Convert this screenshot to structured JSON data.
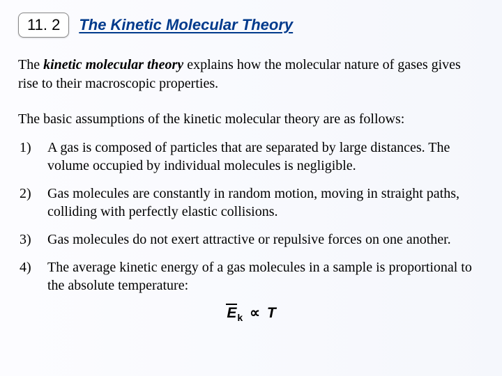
{
  "header": {
    "section_number": "11. 2",
    "title": "The Kinetic Molecular Theory"
  },
  "intro": {
    "prefix": "The ",
    "term": "kinetic molecular theory",
    "suffix": " explains how the molecular nature of gases gives rise to their macroscopic properties."
  },
  "lead": "The basic assumptions of the kinetic molecular theory are as follows:",
  "assumptions": [
    {
      "n": "1)",
      "text": "A gas is composed of particles that are separated by large distances. The volume occupied by individual molecules is negligible."
    },
    {
      "n": "2)",
      "text": "Gas molecules are constantly in random motion, moving in straight paths, colliding with perfectly elastic collisions."
    },
    {
      "n": "3)",
      "text": "Gas molecules do not exert attractive or repulsive forces on one another."
    },
    {
      "n": "4)",
      "text": "The average kinetic energy of a gas molecules in a sample is proportional to the absolute temperature:"
    }
  ],
  "formula": {
    "E": "E",
    "sub": "k",
    "prop": "∝",
    "T": "T"
  },
  "style_notes": {
    "title_color": "#003a8c",
    "body_font": "Georgia/serif",
    "title_font": "Arial/sans-serif bold italic underline",
    "body_fontsize_pt": 20,
    "title_fontsize_pt": 22,
    "badge_bg": "#ffffff",
    "page_bg_gradient": [
      "#fcfcff",
      "#f5f7fc"
    ]
  }
}
